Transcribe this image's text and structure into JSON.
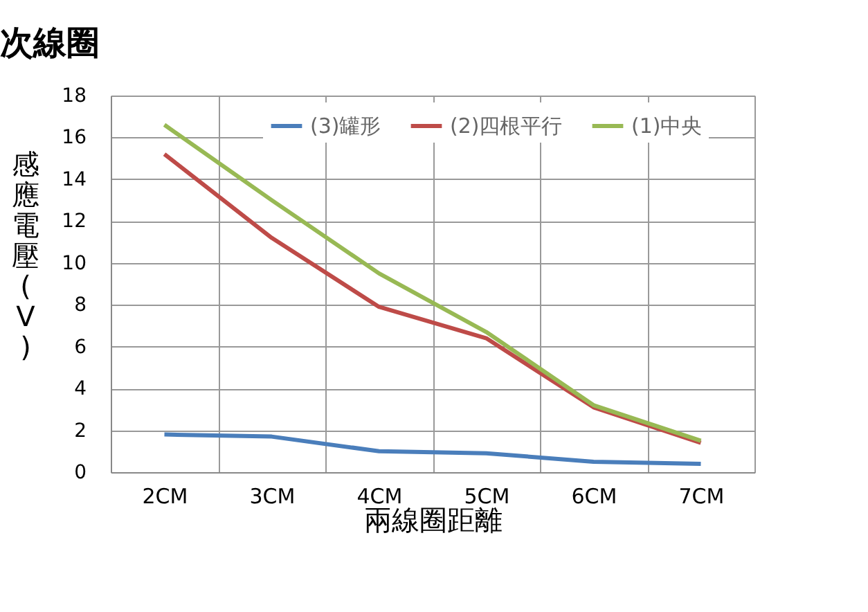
{
  "chart_data": {
    "type": "line",
    "title": "次線圈",
    "xlabel": "兩線圈距離",
    "ylabel": "感應電壓(V)",
    "categories": [
      "2CM",
      "3CM",
      "4CM",
      "5CM",
      "6CM",
      "7CM"
    ],
    "series": [
      {
        "name": "(3)罐形",
        "color": "#4a7ebb",
        "values": [
          1.8,
          1.7,
          1.0,
          0.9,
          0.5,
          0.4
        ]
      },
      {
        "name": "(2)四根平行",
        "color": "#be4b48",
        "values": [
          15.2,
          11.2,
          7.9,
          6.4,
          3.1,
          1.4
        ]
      },
      {
        "name": "(1)中央",
        "color": "#98b954",
        "values": [
          16.6,
          13.0,
          9.5,
          6.7,
          3.2,
          1.5
        ]
      }
    ],
    "ylim": [
      0,
      18
    ],
    "yticks": [
      0,
      2,
      4,
      6,
      8,
      10,
      12,
      14,
      16,
      18
    ],
    "grid": true,
    "legend": "top",
    "marker": "none",
    "line_style": "solid"
  }
}
